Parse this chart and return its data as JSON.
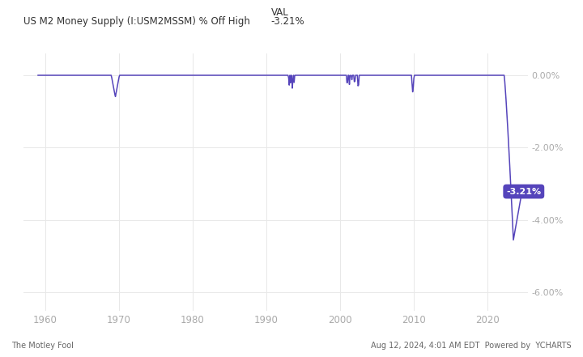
{
  "title_left": "US M2 Money Supply (I:USM2MSSM) % Off High",
  "title_val_label": "VAL",
  "title_val": "-3.21%",
  "line_color": "#5544bb",
  "annotation_text": "-3.21%",
  "annotation_bg": "#5544bb",
  "annotation_text_color": "#ffffff",
  "bg_color": "#ffffff",
  "plot_bg_color": "#ffffff",
  "grid_color": "#e8e8e8",
  "xlabel_color": "#aaaaaa",
  "ylabel_color": "#aaaaaa",
  "ylim": [
    -6.5,
    0.6
  ],
  "yticks": [
    0.0,
    -2.0,
    -4.0,
    -6.0
  ],
  "ytick_labels": [
    "0.00%",
    "-2.00%",
    "-4.00%",
    "-6.00%"
  ],
  "xticks": [
    1960,
    1970,
    1980,
    1990,
    2000,
    2010,
    2020
  ],
  "footer_left": "The Motley Fool",
  "footer_right": "Aug 12, 2024, 4:01 AM EDT  Powered by  YCHARTS",
  "xlim_left": 1957.0,
  "xlim_right": 2025.5
}
